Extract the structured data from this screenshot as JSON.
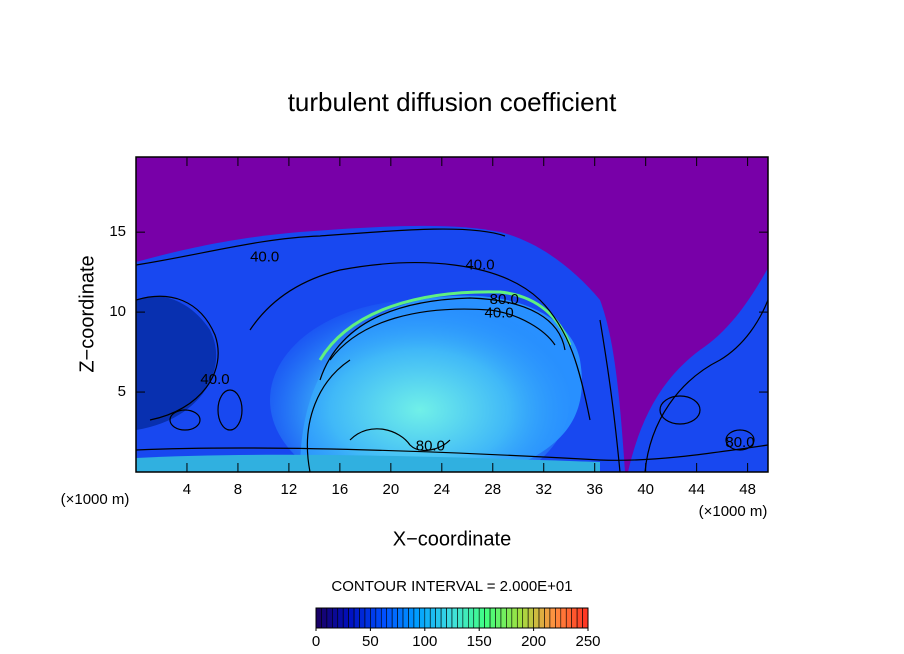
{
  "chart_data": {
    "type": "contour",
    "title": "turbulent diffusion coefficient",
    "xlabel": "X−coordinate",
    "ylabel": "Z−coordinate",
    "x_unit": "(×1000 m)",
    "x_unit_right": "(×1000 m)",
    "xlim": [
      0,
      49.6
    ],
    "ylim": [
      0,
      19.7
    ],
    "xticks": [
      4,
      8,
      12,
      16,
      20,
      24,
      28,
      32,
      36,
      40,
      44,
      48
    ],
    "yticks": [
      5,
      10,
      15
    ],
    "contour_labels": [
      {
        "text": "40.0",
        "x": 10.1,
        "y": 13.4
      },
      {
        "text": "40.0",
        "x": 27.0,
        "y": 12.9
      },
      {
        "text": "80.0",
        "x": 28.9,
        "y": 10.75
      },
      {
        "text": "40.0",
        "x": 28.5,
        "y": 9.9
      },
      {
        "text": "40.0",
        "x": 6.2,
        "y": 5.75
      },
      {
        "text": "80.0",
        "x": 23.1,
        "y": 1.6
      },
      {
        "text": "80.0",
        "x": 47.4,
        "y": 1.8
      }
    ],
    "contour_interval": "CONTOUR INTERVAL = 2.000E+01",
    "clim": [
      0,
      250
    ],
    "cticks": [
      0,
      50,
      100,
      150,
      200,
      250
    ],
    "colormap": [
      "#1a0060",
      "#0010c0",
      "#0050ff",
      "#00a0ff",
      "#40e0e0",
      "#40ff80",
      "#a0e040",
      "#ff9040",
      "#ff3020"
    ]
  }
}
